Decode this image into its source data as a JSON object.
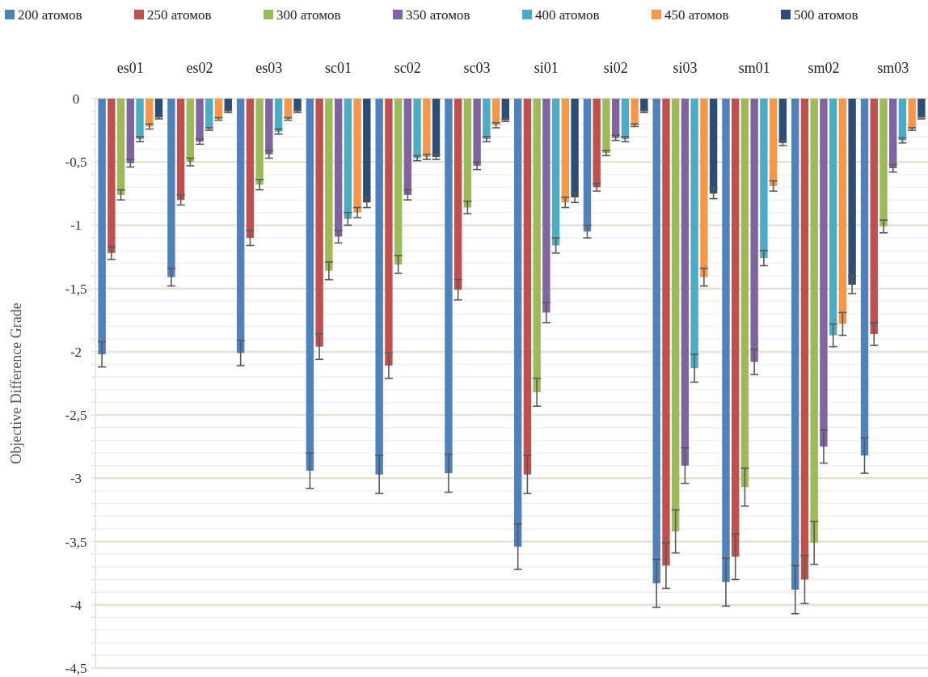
{
  "chart_data": {
    "type": "bar",
    "ylabel": "Objective Difference Grade",
    "legend": "top",
    "grid": "y",
    "categories": [
      "es01",
      "es02",
      "es03",
      "sc01",
      "sc02",
      "sc03",
      "si01",
      "si02",
      "si03",
      "sm01",
      "sm02",
      "sm03"
    ],
    "ylim": [
      -4.5,
      0
    ],
    "yticks": [
      0,
      {
        "value": -0.1,
        "label": null
      },
      {
        "value": -0.2,
        "label": null
      },
      {
        "value": -0.3,
        "label": null
      },
      {
        "value": -0.4,
        "label": null
      },
      {
        "value": -0.5,
        "label": "-0,5"
      },
      {
        "value": -0.6,
        "label": null
      },
      {
        "value": -0.7,
        "label": null
      },
      {
        "value": -0.8,
        "label": null
      },
      {
        "value": -0.9,
        "label": null
      },
      -1,
      {
        "value": -1.1,
        "label": null
      },
      {
        "value": -1.2,
        "label": null
      },
      {
        "value": -1.3,
        "label": null
      },
      {
        "value": -1.4,
        "label": null
      },
      {
        "value": -1.5,
        "label": "-1,5"
      },
      {
        "value": -1.6,
        "label": null
      },
      {
        "value": -1.7,
        "label": null
      },
      {
        "value": -1.8,
        "label": null
      },
      {
        "value": -1.9,
        "label": null
      },
      -2,
      {
        "value": -2.1,
        "label": null
      },
      {
        "value": -2.2,
        "label": null
      },
      {
        "value": -2.3,
        "label": null
      },
      {
        "value": -2.4,
        "label": null
      },
      {
        "value": -2.5,
        "label": "-2,5"
      },
      {
        "value": -2.6,
        "label": null
      },
      {
        "value": -2.7,
        "label": null
      },
      {
        "value": -2.8,
        "label": null
      },
      {
        "value": -2.9,
        "label": null
      },
      -3,
      {
        "value": -3.1,
        "label": null
      },
      {
        "value": -3.2,
        "label": null
      },
      {
        "value": -3.3,
        "label": null
      },
      {
        "value": -3.4,
        "label": null
      },
      {
        "value": -3.5,
        "label": "-3,5"
      },
      {
        "value": -3.6,
        "label": null
      },
      {
        "value": -3.7,
        "label": null
      },
      {
        "value": -3.8,
        "label": null
      },
      {
        "value": -3.9,
        "label": null
      },
      -4,
      {
        "value": -4.1,
        "label": null
      },
      {
        "value": -4.2,
        "label": null
      },
      {
        "value": -4.3,
        "label": null
      },
      {
        "value": -4.4,
        "label": null
      },
      {
        "value": -4.5,
        "label": "-4,5"
      }
    ],
    "series": [
      {
        "name": "200 атомов",
        "color": "#4f81bd",
        "values": [
          -2.02,
          -1.41,
          -2.01,
          -2.94,
          -2.97,
          -2.96,
          -3.54,
          -1.05,
          -3.83,
          -3.82,
          -3.88,
          -2.82
        ],
        "errors": [
          0.1,
          0.07,
          0.1,
          0.14,
          0.15,
          0.15,
          0.18,
          0.05,
          0.19,
          0.19,
          0.19,
          0.14
        ]
      },
      {
        "name": "250 атомов",
        "color": "#c0504d",
        "values": [
          -1.22,
          -0.8,
          -1.1,
          -1.96,
          -2.11,
          -1.51,
          -2.97,
          -0.7,
          -3.69,
          -3.62,
          -3.8,
          -1.86
        ],
        "errors": [
          0.05,
          0.04,
          0.06,
          0.1,
          0.1,
          0.08,
          0.15,
          0.03,
          0.18,
          0.18,
          0.19,
          0.09
        ]
      },
      {
        "name": "300 атомов",
        "color": "#9bbb59",
        "values": [
          -0.76,
          -0.5,
          -0.68,
          -1.36,
          -1.31,
          -0.86,
          -2.32,
          -0.43,
          -3.42,
          -3.07,
          -3.51,
          -1.01
        ],
        "errors": [
          0.04,
          0.03,
          0.04,
          0.07,
          0.07,
          0.05,
          0.11,
          0.02,
          0.17,
          0.15,
          0.17,
          0.05
        ]
      },
      {
        "name": "350 атомов",
        "color": "#8064a2",
        "values": [
          -0.51,
          -0.34,
          -0.44,
          -1.09,
          -0.76,
          -0.53,
          -1.69,
          -0.31,
          -2.9,
          -2.08,
          -2.75,
          -0.55
        ],
        "errors": [
          0.03,
          0.02,
          0.03,
          0.05,
          0.04,
          0.03,
          0.08,
          0.02,
          0.14,
          0.1,
          0.13,
          0.03
        ]
      },
      {
        "name": "400 атомов",
        "color": "#4bacc6",
        "values": [
          -0.32,
          -0.24,
          -0.26,
          -0.95,
          -0.47,
          -0.32,
          -1.16,
          -0.32,
          -2.13,
          -1.26,
          -1.87,
          -0.33
        ],
        "errors": [
          0.02,
          0.01,
          0.02,
          0.05,
          0.02,
          0.02,
          0.06,
          0.02,
          0.11,
          0.06,
          0.09,
          0.02
        ]
      },
      {
        "name": "450 атомов",
        "color": "#f79646",
        "values": [
          -0.22,
          -0.16,
          -0.16,
          -0.9,
          -0.46,
          -0.21,
          -0.82,
          -0.21,
          -1.41,
          -0.69,
          -1.78,
          -0.24
        ],
        "errors": [
          0.02,
          0.01,
          0.01,
          0.04,
          0.02,
          0.02,
          0.04,
          0.01,
          0.07,
          0.04,
          0.09,
          0.01
        ]
      },
      {
        "name": "500 атомов",
        "color": "#2c4d75",
        "values": [
          -0.15,
          -0.1,
          -0.1,
          -0.82,
          -0.46,
          -0.17,
          -0.78,
          -0.1,
          -0.75,
          -0.35,
          -1.47,
          -0.15
        ],
        "errors": [
          0.01,
          0.01,
          0.01,
          0.04,
          0.02,
          0.01,
          0.04,
          0.01,
          0.04,
          0.02,
          0.07,
          0.01
        ]
      }
    ]
  }
}
